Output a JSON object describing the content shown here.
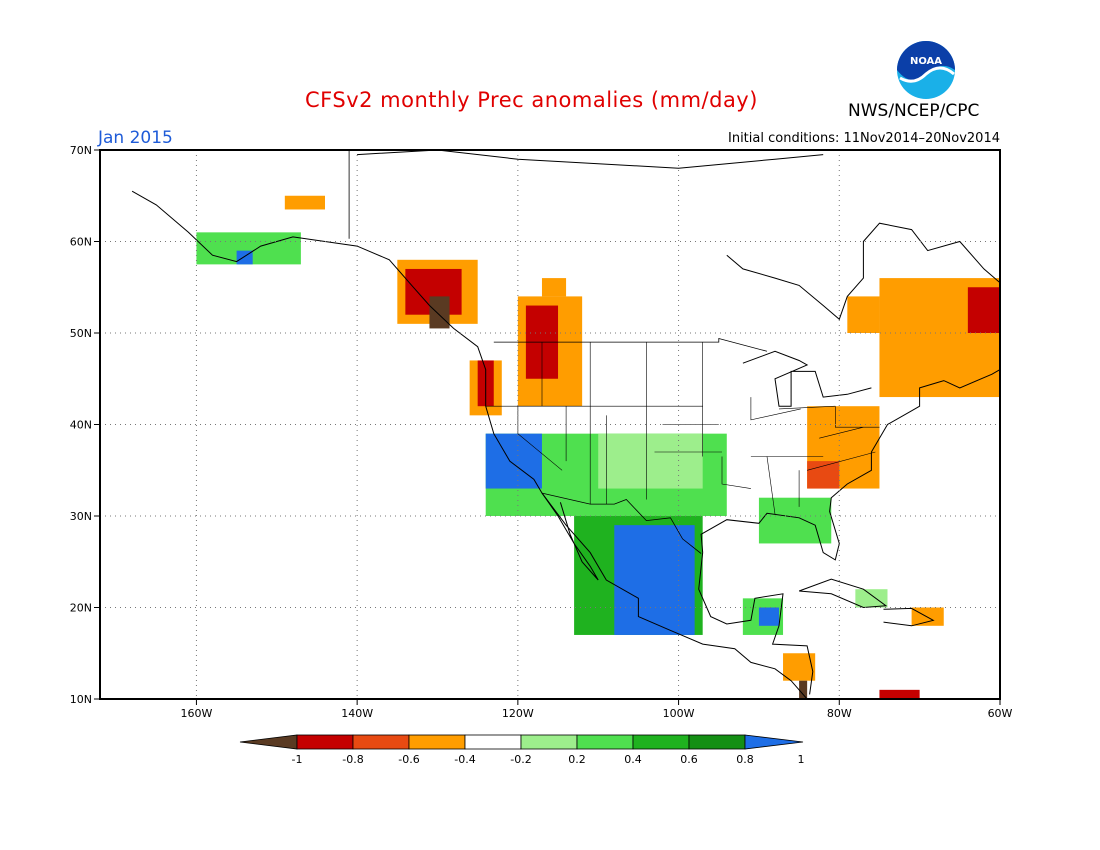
{
  "header": {
    "title": "CFSv2 monthly Prec anomalies (mm/day)",
    "subtitle": "Jan 2015",
    "init_conditions": "Initial conditions: 11Nov2014–20Nov2014",
    "agency": "NWS/NCEP/CPC",
    "logo_text": "NOAA"
  },
  "map": {
    "lon_range": [
      -172,
      -60
    ],
    "lat_range": [
      10,
      70
    ],
    "lat_ticks": [
      {
        "value": 70,
        "label": "70N"
      },
      {
        "value": 60,
        "label": "60N"
      },
      {
        "value": 50,
        "label": "50N"
      },
      {
        "value": 40,
        "label": "40N"
      },
      {
        "value": 30,
        "label": "30N"
      },
      {
        "value": 20,
        "label": "20N"
      },
      {
        "value": 10,
        "label": "10N"
      }
    ],
    "lon_ticks": [
      {
        "value": -160,
        "label": "160W"
      },
      {
        "value": -140,
        "label": "140W"
      },
      {
        "value": -120,
        "label": "120W"
      },
      {
        "value": -100,
        "label": "100W"
      },
      {
        "value": -80,
        "label": "80W"
      },
      {
        "value": -60,
        "label": "60W"
      }
    ],
    "grid_lat": [
      20,
      30,
      40,
      50,
      60
    ],
    "grid_lon": [
      -160,
      -140,
      -120,
      -100,
      -80
    ]
  },
  "colorbar": {
    "labels": [
      "-1",
      "-0.8",
      "-0.6",
      "-0.4",
      "-0.2",
      "0.2",
      "0.4",
      "0.6",
      "0.8",
      "1"
    ],
    "colors": [
      "#5a3a22",
      "#c40000",
      "#e84a12",
      "#ff9d00",
      "#ffffff",
      "#9dee8c",
      "#4fe04f",
      "#1fb21f",
      "#148f14",
      "#1e6ee6"
    ]
  },
  "anomaly_regions": [
    {
      "name": "alaska-south-coast-wet",
      "color": "#4fe04f",
      "lon": [
        -160,
        -147
      ],
      "lat": [
        57.5,
        61
      ]
    },
    {
      "name": "alaska-kodiak-strong-wet",
      "color": "#1e6ee6",
      "lon": [
        -155,
        -153
      ],
      "lat": [
        57.5,
        59
      ]
    },
    {
      "name": "yukon-dry",
      "color": "#ff9d00",
      "lon": [
        -149,
        -144
      ],
      "lat": [
        63.5,
        65
      ]
    },
    {
      "name": "se-alaska-dry-light",
      "color": "#ff9d00",
      "lon": [
        -135,
        -125
      ],
      "lat": [
        51,
        58
      ]
    },
    {
      "name": "se-alaska-dry",
      "color": "#c40000",
      "lon": [
        -134,
        -127
      ],
      "lat": [
        52,
        57
      ]
    },
    {
      "name": "bc-coast-very-dry",
      "color": "#5a3a22",
      "lon": [
        -131,
        -128.5
      ],
      "lat": [
        50.5,
        54
      ]
    },
    {
      "name": "pacific-nw-dry-light",
      "color": "#ff9d00",
      "lon": [
        -126,
        -122
      ],
      "lat": [
        41,
        47
      ]
    },
    {
      "name": "pacific-nw-dry",
      "color": "#c40000",
      "lon": [
        -125,
        -123
      ],
      "lat": [
        42,
        47
      ]
    },
    {
      "name": "interior-bc-dry-light",
      "color": "#ff9d00",
      "lon": [
        -120,
        -112
      ],
      "lat": [
        42,
        54
      ]
    },
    {
      "name": "interior-bc-dry",
      "color": "#c40000",
      "lon": [
        -119,
        -115
      ],
      "lat": [
        45,
        53
      ]
    },
    {
      "name": "alberta-dry",
      "color": "#ff9d00",
      "lon": [
        -117,
        -114
      ],
      "lat": [
        54,
        56
      ]
    },
    {
      "name": "california-southwest-wet",
      "color": "#4fe04f",
      "lon": [
        -124,
        -94
      ],
      "lat": [
        30,
        39
      ]
    },
    {
      "name": "great-plains-wet-light",
      "color": "#9dee8c",
      "lon": [
        -110,
        -97
      ],
      "lat": [
        33,
        39
      ]
    },
    {
      "name": "socal-strong-wet",
      "color": "#1e6ee6",
      "lon": [
        -124,
        -117
      ],
      "lat": [
        33,
        39
      ]
    },
    {
      "name": "mexico-wet",
      "color": "#1fb21f",
      "lon": [
        -113,
        -97
      ],
      "lat": [
        17,
        30
      ]
    },
    {
      "name": "mexico-strong-wet",
      "color": "#1e6ee6",
      "lon": [
        -108,
        -98
      ],
      "lat": [
        17,
        29
      ]
    },
    {
      "name": "yucatan-wet",
      "color": "#4fe04f",
      "lon": [
        -92,
        -87
      ],
      "lat": [
        17,
        21
      ]
    },
    {
      "name": "yucatan-strong-wet",
      "color": "#1e6ee6",
      "lon": [
        -90,
        -87.5
      ],
      "lat": [
        18,
        20
      ]
    },
    {
      "name": "gulf-coast-wet",
      "color": "#4fe04f",
      "lon": [
        -90,
        -81
      ],
      "lat": [
        27,
        32
      ]
    },
    {
      "name": "southeast-dry",
      "color": "#ff9d00",
      "lon": [
        -84,
        -75
      ],
      "lat": [
        33,
        42
      ]
    },
    {
      "name": "carolina-dry",
      "color": "#e84a12",
      "lon": [
        -84,
        -80
      ],
      "lat": [
        33,
        36
      ]
    },
    {
      "name": "quebec-dry",
      "color": "#ff9d00",
      "lon": [
        -75,
        -60
      ],
      "lat": [
        43,
        56
      ]
    },
    {
      "name": "labrador-dry-strong",
      "color": "#c40000",
      "lon": [
        -64,
        -60
      ],
      "lat": [
        50,
        55
      ]
    },
    {
      "name": "hudson-dry",
      "color": "#ff9d00",
      "lon": [
        -79,
        -75
      ],
      "lat": [
        50,
        54
      ]
    },
    {
      "name": "caribbean-dry",
      "color": "#ff9d00",
      "lon": [
        -71,
        -67
      ],
      "lat": [
        18,
        20
      ]
    },
    {
      "name": "central-america-dry",
      "color": "#ff9d00",
      "lon": [
        -87,
        -83
      ],
      "lat": [
        12,
        15
      ]
    },
    {
      "name": "nicaragua-very-dry",
      "color": "#5a3a22",
      "lon": [
        -85,
        -84
      ],
      "lat": [
        10,
        12
      ]
    },
    {
      "name": "venezuela-dry",
      "color": "#c40000",
      "lon": [
        -75,
        -70
      ],
      "lat": [
        10,
        11
      ]
    },
    {
      "name": "cuba-wet-light",
      "color": "#9dee8c",
      "lon": [
        -78,
        -74
      ],
      "lat": [
        20,
        22
      ]
    }
  ]
}
